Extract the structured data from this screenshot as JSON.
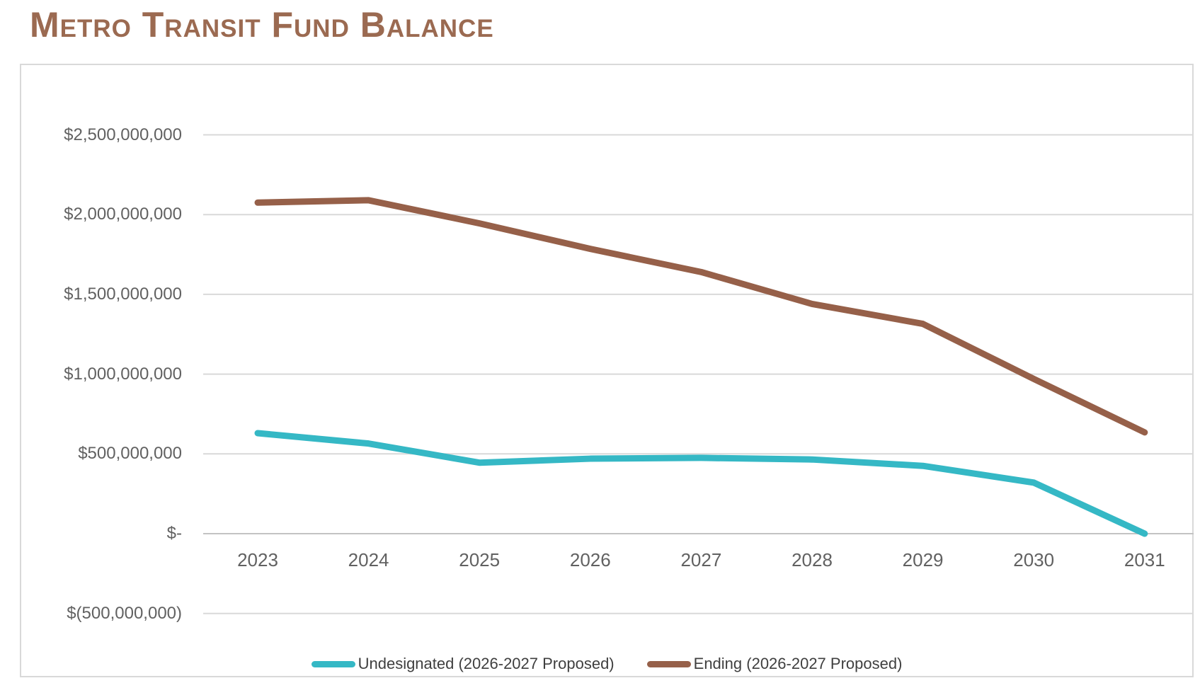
{
  "title": "Metro Transit Fund Balance",
  "colors": {
    "title_text": "#9B6A51",
    "axis_label": "#616161",
    "legend_text": "#3F3F3F",
    "gridline": "#D9D9D9",
    "zero_axis_line": "#C3C3C3",
    "chart_border": "#D9D9D9",
    "series_undesignated": "#35B8C5",
    "series_ending": "#966049"
  },
  "chart_data": {
    "type": "line",
    "title": "Metro Transit Fund Balance",
    "categories": [
      "2023",
      "2024",
      "2025",
      "2026",
      "2027",
      "2028",
      "2029",
      "2030",
      "2031"
    ],
    "values_unit": "USD millions (estimated from plot)",
    "series": [
      {
        "name": "Undesignated (2026-2027 Proposed)",
        "color": "#35B8C5",
        "values": [
          630,
          565,
          445,
          470,
          475,
          465,
          425,
          320,
          0
        ]
      },
      {
        "name": "Ending (2026-2027 Proposed)",
        "color": "#966049",
        "values": [
          2075,
          2090,
          1945,
          1785,
          1640,
          1440,
          1315,
          970,
          635
        ]
      }
    ],
    "y_ticks": [
      {
        "value": 2500,
        "label": "$2,500,000,000"
      },
      {
        "value": 2000,
        "label": "$2,000,000,000"
      },
      {
        "value": 1500,
        "label": "$1,500,000,000"
      },
      {
        "value": 1000,
        "label": "$1,000,000,000"
      },
      {
        "value": 500,
        "label": "$500,000,000"
      },
      {
        "value": 0,
        "label": "$-"
      },
      {
        "value": -500,
        "label": "$(500,000,000)"
      }
    ],
    "ylim": [
      -500,
      2500
    ],
    "xlabel": "",
    "ylabel": "",
    "grid": true,
    "legend_position": "bottom"
  }
}
